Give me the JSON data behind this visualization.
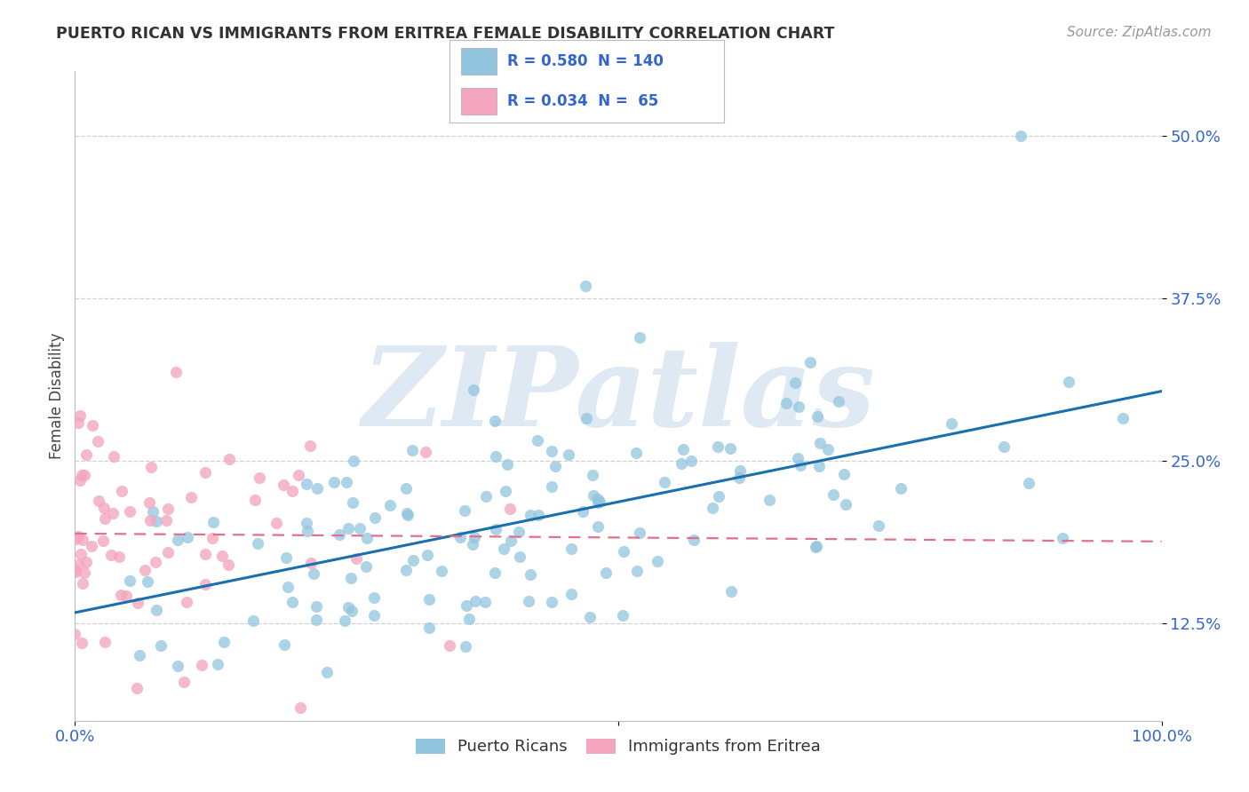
{
  "title": "PUERTO RICAN VS IMMIGRANTS FROM ERITREA FEMALE DISABILITY CORRELATION CHART",
  "source": "Source: ZipAtlas.com",
  "ylabel_label": "Female Disability",
  "R_blue": 0.58,
  "N_blue": 140,
  "R_pink": 0.034,
  "N_pink": 65,
  "blue_color": "#92c5de",
  "pink_color": "#f4a6be",
  "blue_line_color": "#1a6faf",
  "pink_line_color": "#e07090",
  "tick_color": "#3366cc",
  "label_color": "#444444",
  "watermark": "ZIPatlas",
  "background_color": "#ffffff",
  "xlim": [
    0.0,
    1.0
  ],
  "ylim": [
    0.05,
    0.55
  ],
  "y_tick_vals": [
    0.125,
    0.25,
    0.375,
    0.5
  ],
  "y_tick_labels": [
    "12.5%",
    "25.0%",
    "37.5%",
    "50.0%"
  ]
}
